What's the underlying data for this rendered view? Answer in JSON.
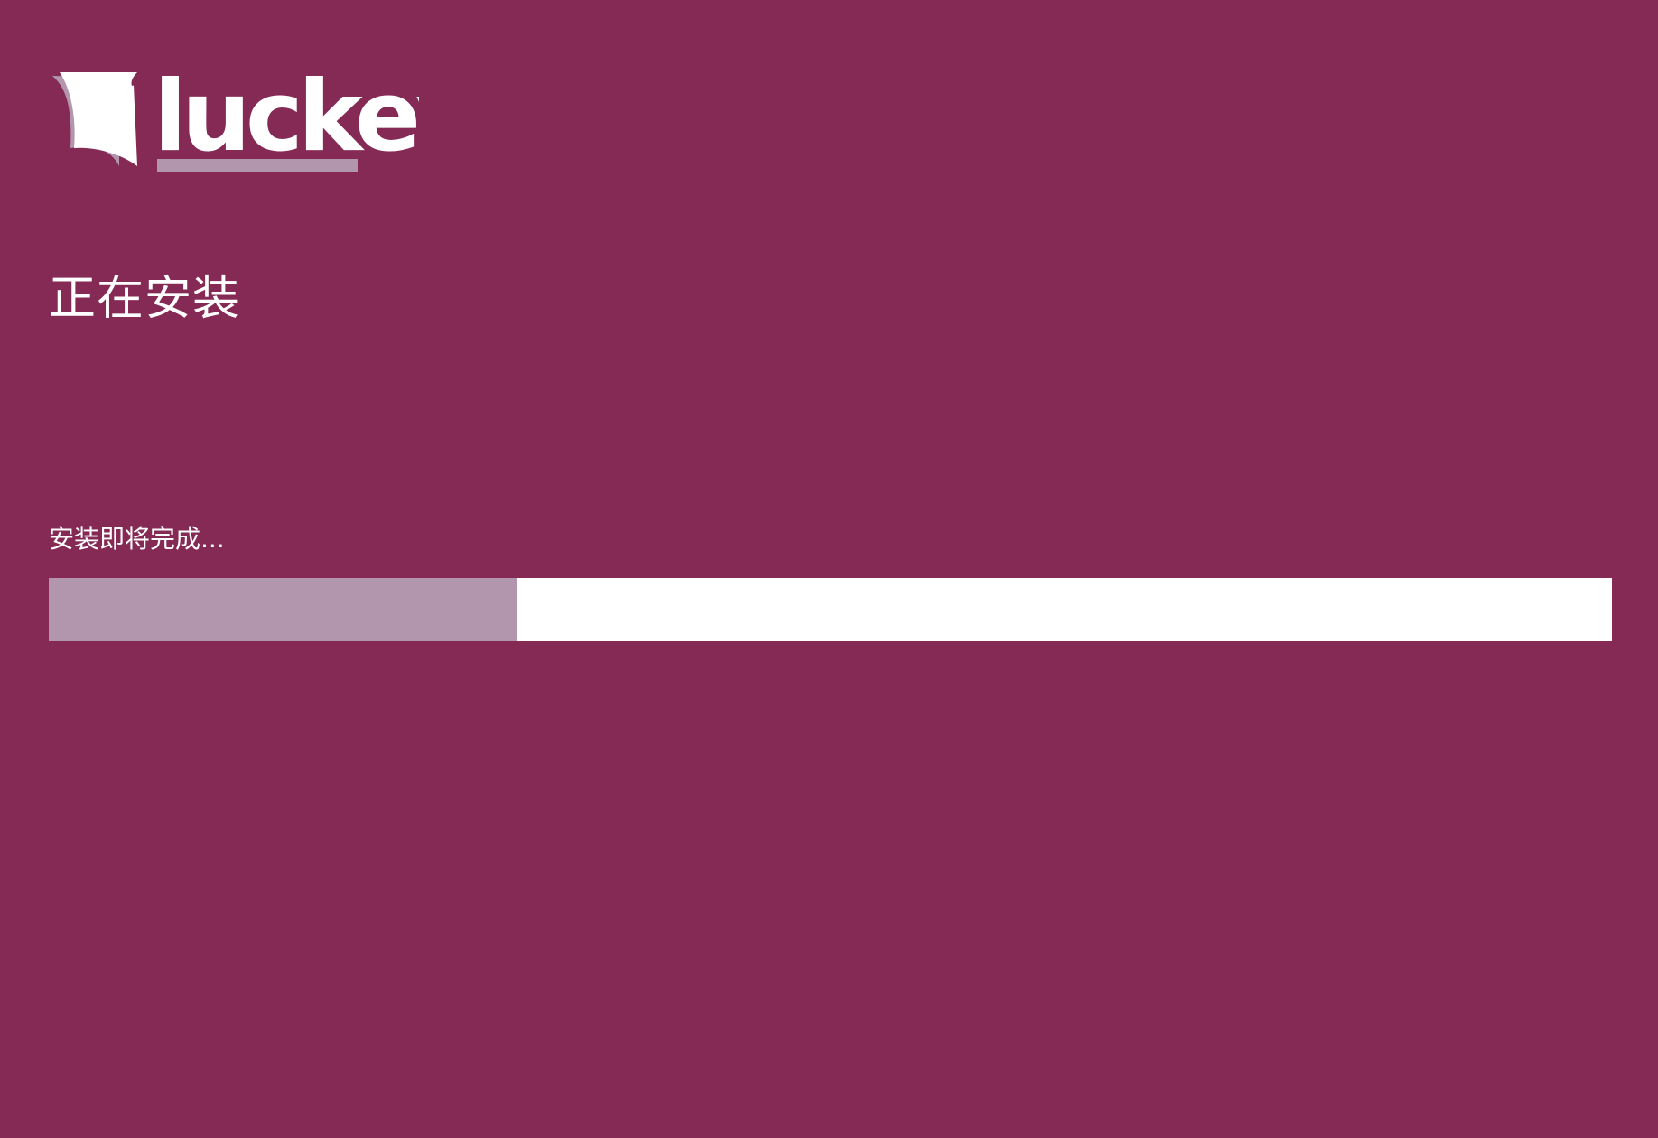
{
  "brand": {
    "logo_text": "luckey",
    "background_color": "#852955",
    "accent_color": "#b196ad",
    "logo_icon": "luckey-logo-icon"
  },
  "installer": {
    "title": "正在安装",
    "status_text": "安装即将完成...",
    "progress_percent": 30
  }
}
